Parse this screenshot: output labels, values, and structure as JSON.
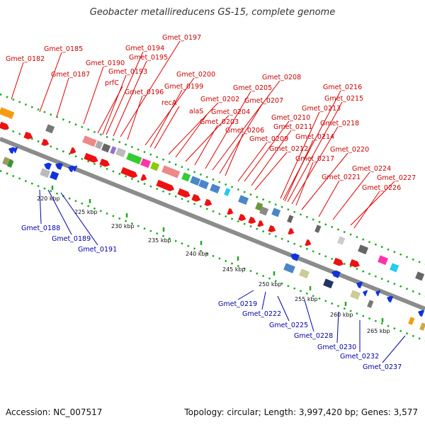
{
  "title": "Geobacter metallireducens GS-15, complete genome",
  "footer": {
    "accession": "Accession: NC_007517",
    "summary": "Topology: circular; Length: 3,997,420 bp; Genes: 3,577"
  },
  "colors": {
    "forward_gene": "#ee1111",
    "reverse_gene": "#1133dd",
    "backbone": "#8c8c8c",
    "tick": "#22aa22",
    "label_forward": "#cc0000",
    "label_reverse": "#0000aa"
  },
  "kbp_ticks": [
    "220 kbp",
    "225 kbp",
    "230 kbp",
    "235 kbp",
    "240 kbp",
    "245 kbp",
    "250 kbp",
    "255 kbp",
    "260 kbp",
    "265 kbp"
  ],
  "forward_labels": [
    "Gmet_0182",
    "Gmet_0185",
    "Gmet_0187",
    "Gmet_0190",
    "Gmet_0194",
    "Gmet_0197",
    "Gmet_0195",
    "Gmet_0193",
    "prfC",
    "Gmet_0196",
    "Gmet_0200",
    "Gmet_0199",
    "recA",
    "Gmet_0202",
    "alaS",
    "Gmet_0204",
    "Gmet_0203",
    "Gmet_0208",
    "Gmet_0205",
    "Gmet_0207",
    "Gmet_0206",
    "Gmet_0210",
    "Gmet_0211",
    "Gmet_0209",
    "Gmet_0216",
    "Gmet_0215",
    "Gmet_0213",
    "Gmet_0214",
    "Gmet_0218",
    "Gmet_0212",
    "Gmet_0217",
    "Gmet_0220",
    "Gmet_0221",
    "Gmet_0224",
    "Gmet_0227",
    "Gmet_0226"
  ],
  "reverse_labels": [
    "Gmet_0188",
    "Gmet_0189",
    "Gmet_0191",
    "Gmet_0219",
    "Gmet_0222",
    "Gmet_0225",
    "Gmet_0228",
    "Gmet_0230",
    "Gmet_0232",
    "Gmet_0237"
  ]
}
